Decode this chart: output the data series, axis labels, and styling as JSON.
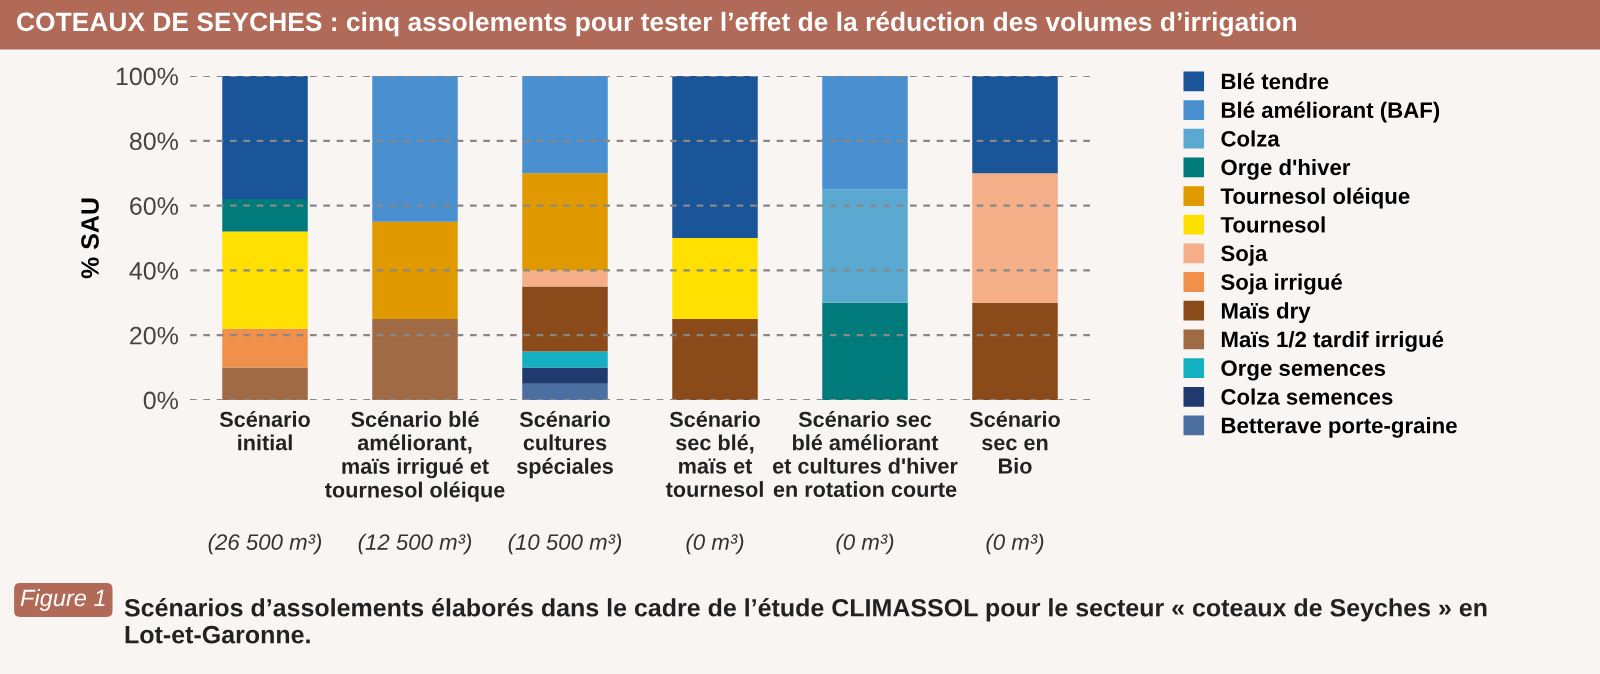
{
  "chart_data": {
    "type": "bar",
    "stacked": true,
    "title": "COTEAUX DE SEYCHES : cinq assolements pour tester l’effet de la réduction des volumes d’irrigation",
    "ylabel": "% SAU",
    "categories": [
      "Scénario\ninitial",
      "Scénario blé\naméliorant,\nmaïs irrigué et\ntournesol oléique",
      "Scénario\ncultures\nspéciales",
      "Scénario\nsec blé,\nmaïs et\ntournesol",
      "Scénario sec\nblé améliorant\net cultures d'hiver\nen rotation courte",
      "Scénario\nsec en\nBio"
    ],
    "series": [
      {
        "name": "Betterave porte-graine",
        "color": "#4a6fa0",
        "values": [
          null,
          null,
          5,
          null,
          null,
          null
        ]
      },
      {
        "name": "Colza semences",
        "color": "#1e3a6e",
        "values": [
          null,
          null,
          5,
          null,
          null,
          null
        ]
      },
      {
        "name": "Orge semences",
        "color": "#12b0c0",
        "values": [
          null,
          null,
          5,
          null,
          null,
          null
        ]
      },
      {
        "name": "Maïs 1/2 tardif irrigué",
        "color": "#a06a45",
        "values": [
          10,
          25,
          null,
          null,
          null,
          null
        ]
      },
      {
        "name": "Maïs dry",
        "color": "#8b4a1a",
        "values": [
          null,
          null,
          20,
          25,
          null,
          30
        ]
      },
      {
        "name": "Soja irrigué",
        "color": "#f0904a",
        "values": [
          12,
          null,
          null,
          null,
          null,
          null
        ]
      },
      {
        "name": "Soja",
        "color": "#f4ae88",
        "values": [
          null,
          null,
          5,
          null,
          null,
          40
        ]
      },
      {
        "name": "Tournesol",
        "color": "#ffe000",
        "values": [
          30,
          null,
          null,
          25,
          null,
          null
        ]
      },
      {
        "name": "Tournesol oléique",
        "color": "#e09a00",
        "values": [
          null,
          30,
          30,
          null,
          null,
          null
        ]
      },
      {
        "name": "Orge d'hiver",
        "color": "#007a7a",
        "values": [
          10,
          null,
          null,
          null,
          30,
          null
        ]
      },
      {
        "name": "Colza",
        "color": "#5ba8d0",
        "values": [
          null,
          null,
          null,
          null,
          35,
          null
        ]
      },
      {
        "name": "Blé améliorant (BAF)",
        "color": "#4a90d0",
        "values": [
          null,
          45,
          30,
          null,
          35,
          null
        ]
      },
      {
        "name": "Blé tendre",
        "color": "#1a5599",
        "values": [
          38,
          null,
          null,
          50,
          null,
          30
        ]
      }
    ],
    "ylim": [
      0,
      100
    ],
    "yticks": [
      {
        "value": 0,
        "label": "0%"
      },
      {
        "value": 20,
        "label": "20%"
      },
      {
        "value": 40,
        "label": "40%"
      },
      {
        "value": 60,
        "label": "60%"
      },
      {
        "value": 80,
        "label": "80%"
      },
      {
        "value": 100,
        "label": "100%"
      }
    ],
    "grid": "y",
    "legend": "right",
    "annotations": [
      "(26 500 m³)",
      "(12 500 m³)",
      "(10 500 m³)",
      "(0 m³)",
      "(0 m³)",
      "(0 m³)",
      "Figure 1",
      "Scénarios d’assolements élaborés dans le cadre de l’étude CLIMASSOL pour le secteur « coteaux de Seyches » en Lot-et-Garonne."
    ]
  }
}
